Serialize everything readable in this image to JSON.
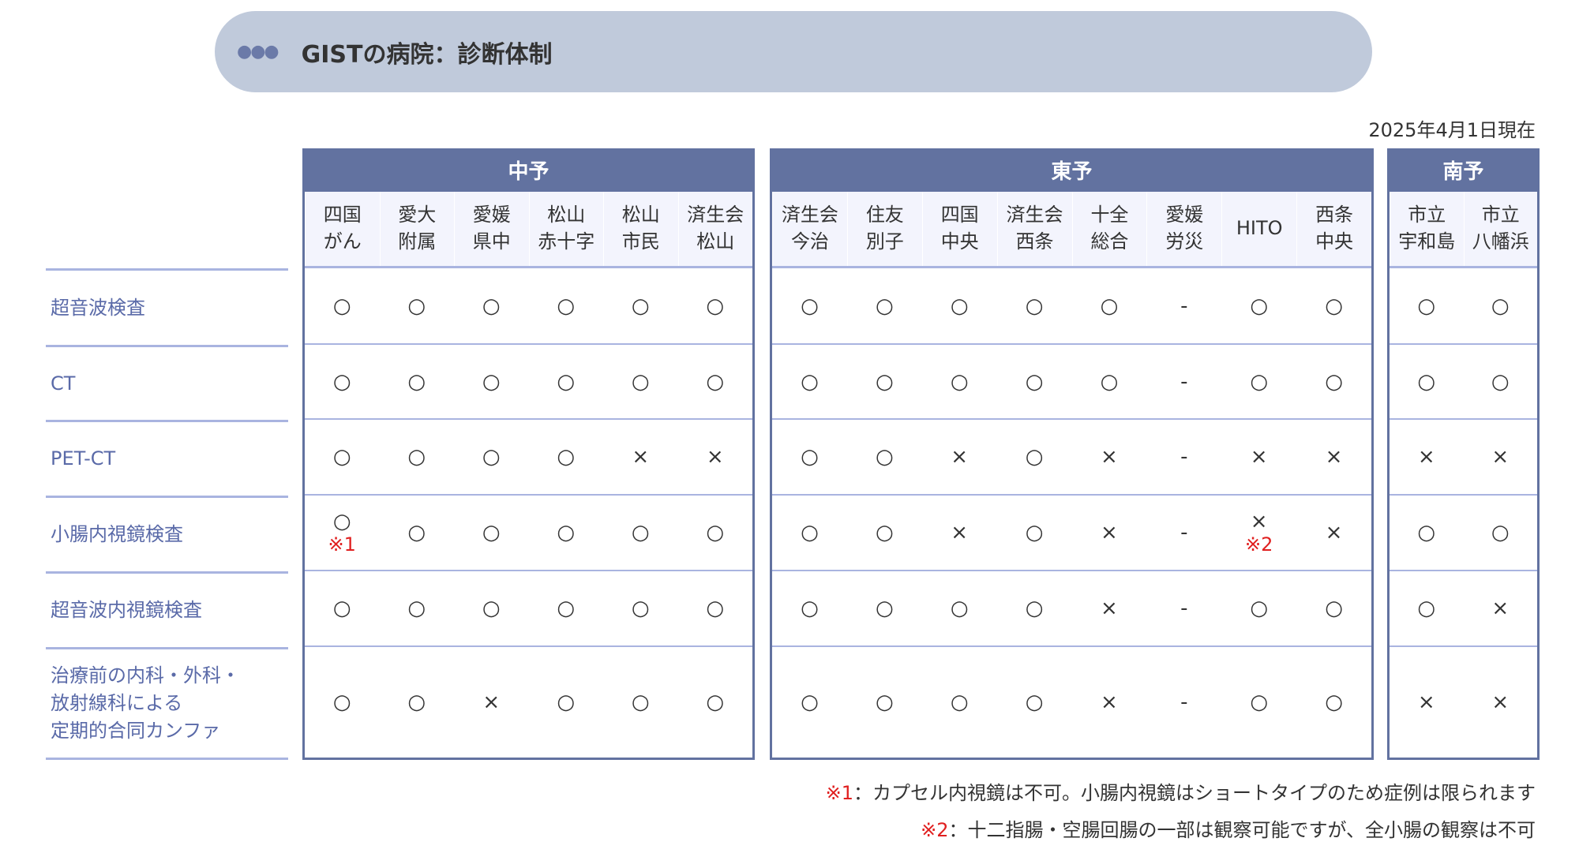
{
  "title": "GISTの病院：診断体制",
  "title_icon": "ellipsis-icon",
  "date": "2025年4月1日現在",
  "row_labels": [
    "超音波検査",
    "CT",
    "PET-CT",
    "小腸内視鏡検査",
    "超音波内視鏡検査",
    "治療前の内科・外科・\n放射線科による\n定期的合同カンファ"
  ],
  "groups": [
    {
      "name": "中予",
      "hospitals": [
        "四国\nがん",
        "愛大\n附属",
        "愛媛\n県中",
        "松山\n赤十字",
        "松山\n市民",
        "済生会\n松山"
      ],
      "rows": [
        [
          [
            "○"
          ],
          [
            "○"
          ],
          [
            "○"
          ],
          [
            "○"
          ],
          [
            "○"
          ],
          [
            "○"
          ]
        ],
        [
          [
            "○"
          ],
          [
            "○"
          ],
          [
            "○"
          ],
          [
            "○"
          ],
          [
            "○"
          ],
          [
            "○"
          ]
        ],
        [
          [
            "○"
          ],
          [
            "○"
          ],
          [
            "○"
          ],
          [
            "○"
          ],
          [
            "×"
          ],
          [
            "×"
          ]
        ],
        [
          [
            "○",
            "※1"
          ],
          [
            "○"
          ],
          [
            "○"
          ],
          [
            "○"
          ],
          [
            "○"
          ],
          [
            "○"
          ]
        ],
        [
          [
            "○"
          ],
          [
            "○"
          ],
          [
            "○"
          ],
          [
            "○"
          ],
          [
            "○"
          ],
          [
            "○"
          ]
        ],
        [
          [
            "○"
          ],
          [
            "○"
          ],
          [
            "×"
          ],
          [
            "○"
          ],
          [
            "○"
          ],
          [
            "○"
          ]
        ]
      ]
    },
    {
      "name": "東予",
      "hospitals": [
        "済生会\n今治",
        "住友\n別子",
        "四国\n中央",
        "済生会\n西条",
        "十全\n総合",
        "愛媛\n労災",
        "HITO",
        "西条\n中央"
      ],
      "rows": [
        [
          [
            "○"
          ],
          [
            "○"
          ],
          [
            "○"
          ],
          [
            "○"
          ],
          [
            "○"
          ],
          [
            "-"
          ],
          [
            "○"
          ],
          [
            "○"
          ]
        ],
        [
          [
            "○"
          ],
          [
            "○"
          ],
          [
            "○"
          ],
          [
            "○"
          ],
          [
            "○"
          ],
          [
            "-"
          ],
          [
            "○"
          ],
          [
            "○"
          ]
        ],
        [
          [
            "○"
          ],
          [
            "○"
          ],
          [
            "×"
          ],
          [
            "○"
          ],
          [
            "×"
          ],
          [
            "-"
          ],
          [
            "×"
          ],
          [
            "×"
          ]
        ],
        [
          [
            "○"
          ],
          [
            "○"
          ],
          [
            "×"
          ],
          [
            "○"
          ],
          [
            "×"
          ],
          [
            "-"
          ],
          [
            "×",
            "※2"
          ],
          [
            "×"
          ]
        ],
        [
          [
            "○"
          ],
          [
            "○"
          ],
          [
            "○"
          ],
          [
            "○"
          ],
          [
            "×"
          ],
          [
            "-"
          ],
          [
            "○"
          ],
          [
            "○"
          ]
        ],
        [
          [
            "○"
          ],
          [
            "○"
          ],
          [
            "○"
          ],
          [
            "○"
          ],
          [
            "×"
          ],
          [
            "-"
          ],
          [
            "○"
          ],
          [
            "○"
          ]
        ]
      ]
    },
    {
      "name": "南予",
      "hospitals": [
        "市立\n宇和島",
        "市立\n八幡浜"
      ],
      "rows": [
        [
          [
            "○"
          ],
          [
            "○"
          ]
        ],
        [
          [
            "○"
          ],
          [
            "○"
          ]
        ],
        [
          [
            "×"
          ],
          [
            "×"
          ]
        ],
        [
          [
            "○"
          ],
          [
            "○"
          ]
        ],
        [
          [
            "○"
          ],
          [
            "×"
          ]
        ],
        [
          [
            "×"
          ],
          [
            "×"
          ]
        ]
      ]
    }
  ],
  "footnotes": [
    {
      "mark": "※1",
      "text": "：カプセル内視鏡は不可。小腸内視鏡はショートタイプのため症例は限られます"
    },
    {
      "mark": "※2",
      "text": "：十二指腸・空腸回腸の一部は観察可能ですが、全小腸の観察は不可"
    }
  ],
  "colors": {
    "header": "#6272a0",
    "title_bar": "#c0cadb",
    "subheader": "#f3f4fd",
    "row_line": "#a9b4e0",
    "label_text": "#5a6aa8",
    "note": "#e02020"
  }
}
